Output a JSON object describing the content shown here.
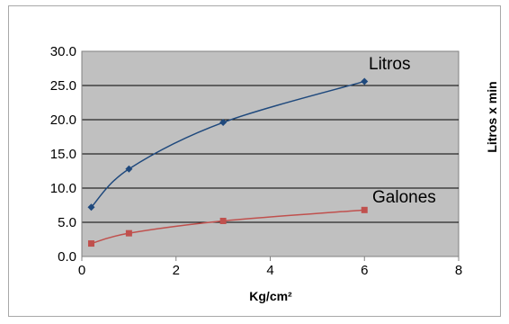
{
  "chart_data": {
    "type": "scatter",
    "xlabel": "Kg/cm²",
    "ylabel": "Litros x min",
    "xlim": [
      0,
      8
    ],
    "ylim": [
      0,
      30
    ],
    "x_ticks": [
      "0",
      "2",
      "4",
      "6",
      "8"
    ],
    "y_ticks": [
      "0.0",
      "5.0",
      "10.0",
      "15.0",
      "20.0",
      "25.0",
      "30.0"
    ],
    "grid": "horizontal",
    "plot_background": "#c0c0c0",
    "series": [
      {
        "name": "Litros",
        "color": "#1f497d",
        "marker": "diamond",
        "smooth": true,
        "x": [
          0.2,
          1,
          3,
          6
        ],
        "y": [
          7.2,
          12.8,
          19.6,
          25.6
        ]
      },
      {
        "name": "Galones",
        "color": "#c0504d",
        "marker": "square",
        "smooth": true,
        "x": [
          0.2,
          1,
          3,
          6
        ],
        "y": [
          1.9,
          3.4,
          5.2,
          6.8
        ]
      }
    ]
  }
}
